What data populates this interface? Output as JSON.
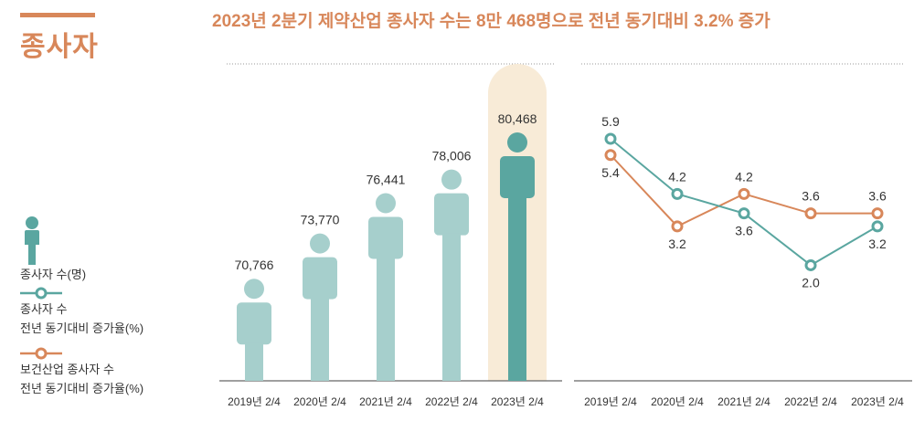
{
  "section_title": "종사자",
  "headline": "2023년 2분기 제약산업 종사자 수는 8만 468명으로 전년 동기대비 3.2% 증가",
  "legend": {
    "people": "종사자 수(명)",
    "rate_line1": "종사자 수",
    "rate_line2": "전년 동기대비 증가율(%)",
    "health_line1": "보건산업 종사자 수",
    "health_line2": "전년 동기대비 증가율(%)"
  },
  "colors": {
    "accent": "#d8875a",
    "teal_light": "#a6cfcc",
    "teal_dark": "#5aa6a0",
    "orange": "#d8875a",
    "highlight_bg": "#f8ebd7"
  },
  "chart_data": [
    {
      "type": "bar",
      "title": "종사자 수(명)",
      "categories": [
        "2019년 2/4",
        "2020년 2/4",
        "2021년 2/4",
        "2022년 2/4",
        "2023년 2/4"
      ],
      "values": [
        70766,
        73770,
        76441,
        78006,
        80468
      ],
      "value_labels": [
        "70,766",
        "73,770",
        "76,441",
        "78,006",
        "80,468"
      ],
      "highlight_index": 4
    },
    {
      "type": "line",
      "categories": [
        "2019년 2/4",
        "2020년 2/4",
        "2021년 2/4",
        "2022년 2/4",
        "2023년 2/4"
      ],
      "series": [
        {
          "name": "종사자 수 전년 동기대비 증가율(%)",
          "values": [
            5.9,
            4.2,
            3.6,
            2.0,
            3.2
          ],
          "labels": [
            "5.9",
            "4.2",
            "3.6",
            "2.0",
            "3.2"
          ]
        },
        {
          "name": "보건산업 종사자 수 전년 동기대비 증가율(%)",
          "values": [
            5.4,
            3.2,
            4.2,
            3.6,
            3.6
          ],
          "labels": [
            "5.4",
            "3.2",
            "4.2",
            "3.6",
            "3.6"
          ]
        }
      ]
    }
  ]
}
